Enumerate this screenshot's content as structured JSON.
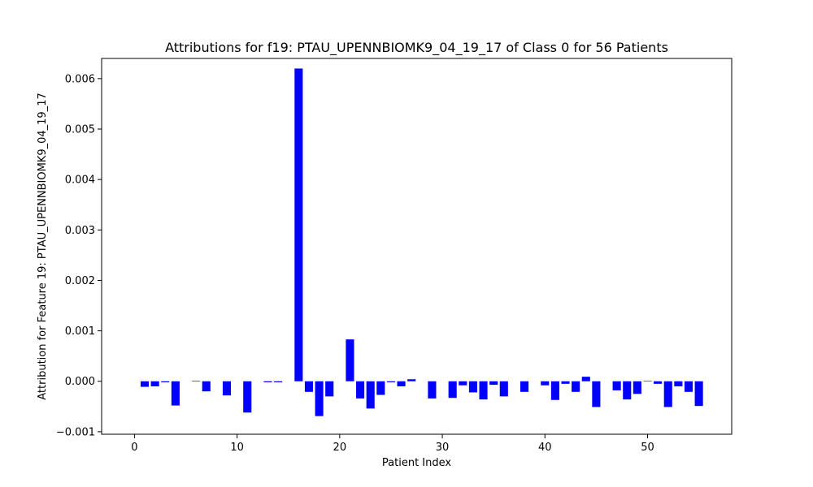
{
  "chart_data": {
    "type": "bar",
    "title": "Attributions for f19: PTAU_UPENNBIOMK9_04_19_17 of Class 0 for 56 Patients",
    "xlabel": "Patient Index",
    "ylabel": "Attribution for Feature 19: PTAU_UPENNBIOMK9_04_19_17",
    "xlim": [
      -3.2,
      58.2
    ],
    "ylim": [
      -0.00105,
      0.0064
    ],
    "xticks": [
      0,
      10,
      20,
      30,
      40,
      50
    ],
    "xtick_labels": [
      "0",
      "10",
      "20",
      "30",
      "40",
      "50"
    ],
    "yticks": [
      -0.001,
      0.0,
      0.001,
      0.002,
      0.003,
      0.004,
      0.005,
      0.006
    ],
    "ytick_labels": [
      "−0.001",
      "0.000",
      "0.001",
      "0.002",
      "0.003",
      "0.004",
      "0.005",
      "0.006"
    ],
    "grid": false,
    "bar_color": "#0000ff",
    "x": [
      0,
      1,
      2,
      3,
      4,
      5,
      6,
      7,
      8,
      9,
      10,
      11,
      12,
      13,
      14,
      15,
      16,
      17,
      18,
      19,
      20,
      21,
      22,
      23,
      24,
      25,
      26,
      27,
      28,
      29,
      30,
      31,
      32,
      33,
      34,
      35,
      36,
      37,
      38,
      39,
      40,
      41,
      42,
      43,
      44,
      45,
      46,
      47,
      48,
      49,
      50,
      51,
      52,
      53,
      54,
      55
    ],
    "values": [
      0.0,
      -0.00011,
      -0.0001,
      -2e-05,
      -0.00048,
      0.0,
      1e-05,
      -0.0002,
      0.0,
      -0.00028,
      0.0,
      -0.00062,
      0.0,
      -2e-05,
      -2e-05,
      0.0,
      0.0062,
      -0.00021,
      -0.00069,
      -0.0003,
      0.0,
      0.00083,
      -0.00034,
      -0.00054,
      -0.00027,
      -2e-05,
      -0.0001,
      4e-05,
      0.0,
      -0.00034,
      0.0,
      -0.00033,
      -8e-05,
      -0.00022,
      -0.00036,
      -7e-05,
      -0.0003,
      0.0,
      -0.00021,
      0.0,
      -8e-05,
      -0.00037,
      -5e-05,
      -0.00021,
      9e-05,
      -0.00051,
      0.0,
      -0.00018,
      -0.00036,
      -0.00025,
      1e-05,
      -5e-05,
      -0.00051,
      -0.0001,
      -0.00021,
      -0.00049
    ]
  }
}
